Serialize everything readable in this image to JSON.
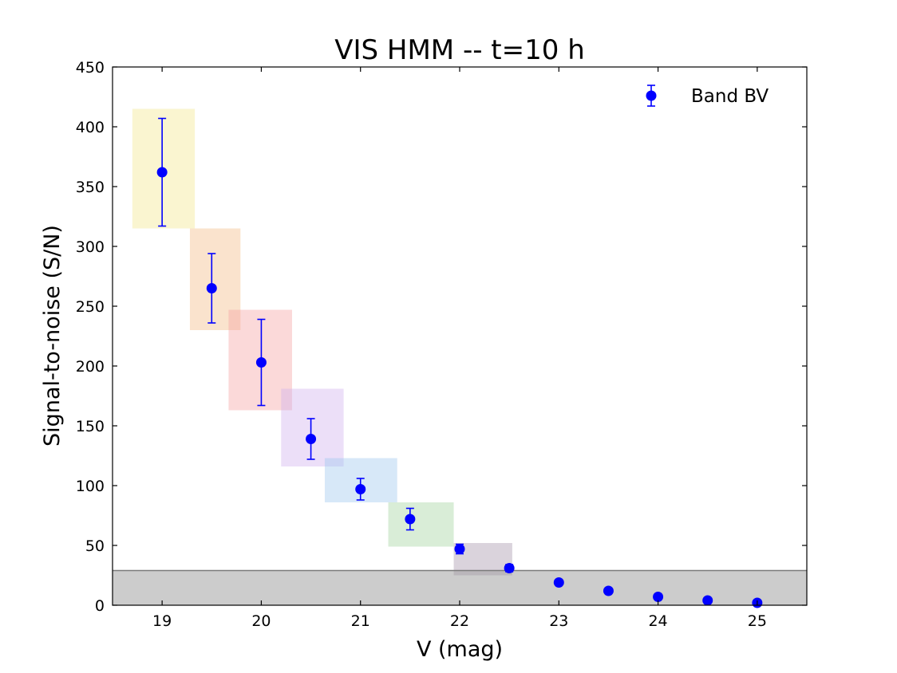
{
  "chart_data": {
    "type": "scatter",
    "title": "VIS HMM -- t=10 h",
    "xlabel": "V (mag)",
    "ylabel": "Signal-to-noise (S/N)",
    "xlim": [
      18.5,
      25.5
    ],
    "ylim": [
      0,
      450
    ],
    "xticks": [
      19,
      20,
      21,
      22,
      23,
      24,
      25
    ],
    "yticks": [
      0,
      50,
      100,
      150,
      200,
      250,
      300,
      350,
      400,
      450
    ],
    "legend": {
      "position": "top-right",
      "label": "Band BV"
    },
    "series": [
      {
        "name": "Band BV",
        "color": "#0000ff",
        "points": [
          {
            "x": 19.0,
            "y": 362,
            "err": 45
          },
          {
            "x": 19.5,
            "y": 265,
            "err": 29
          },
          {
            "x": 20.0,
            "y": 203,
            "err": 36
          },
          {
            "x": 20.5,
            "y": 139,
            "err": 17
          },
          {
            "x": 21.0,
            "y": 97,
            "err": 9
          },
          {
            "x": 21.5,
            "y": 72,
            "err": 9
          },
          {
            "x": 22.0,
            "y": 47,
            "err": 4
          },
          {
            "x": 22.5,
            "y": 31,
            "err": 3
          },
          {
            "x": 23.0,
            "y": 19,
            "err": 0
          },
          {
            "x": 23.5,
            "y": 12,
            "err": 0
          },
          {
            "x": 24.0,
            "y": 7,
            "err": 0
          },
          {
            "x": 24.5,
            "y": 4,
            "err": 0
          },
          {
            "x": 25.0,
            "y": 2,
            "err": 0
          }
        ]
      }
    ],
    "shaded_regions": [
      {
        "x0": 18.7,
        "x1": 19.33,
        "y0": 315,
        "y1": 415,
        "color": "#f3e58a"
      },
      {
        "x0": 19.28,
        "x1": 19.79,
        "y0": 230,
        "y1": 315,
        "color": "#f3b883"
      },
      {
        "x0": 19.67,
        "x1": 20.31,
        "y0": 163,
        "y1": 247,
        "color": "#f6a1a1"
      },
      {
        "x0": 20.2,
        "x1": 20.83,
        "y0": 116,
        "y1": 181,
        "color": "#cfb0ee"
      },
      {
        "x0": 20.64,
        "x1": 21.37,
        "y0": 86,
        "y1": 123,
        "color": "#9cc5ee"
      },
      {
        "x0": 21.28,
        "x1": 21.94,
        "y0": 49,
        "y1": 86,
        "color": "#9fd39b"
      },
      {
        "x0": 21.94,
        "x1": 22.53,
        "y0": 25,
        "y1": 52,
        "color": "#a292a8"
      }
    ],
    "threshold_band": {
      "y0": 0,
      "y1": 29,
      "color": "#9a9a9a"
    }
  }
}
